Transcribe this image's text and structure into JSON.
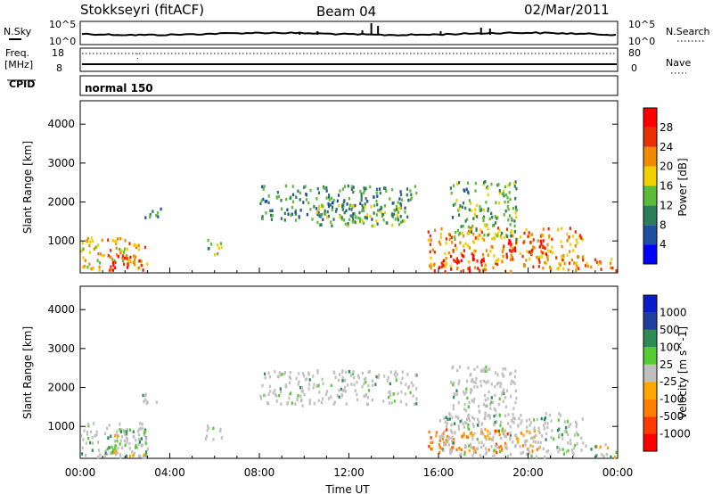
{
  "header": {
    "station": "Stokkseyri (fitACF)",
    "beam": "Beam 04",
    "date": "02/Mar/2011"
  },
  "side_labels": {
    "nsky": "N.Sky",
    "nsearch": "N.Search",
    "freq": "Freq.",
    "freq_unit": "[MHz]",
    "nave": "Nave",
    "cpid": "CPID",
    "cpid_value": "normal 150"
  },
  "noise_panel": {
    "left_ticks": [
      "10^5",
      "10^0"
    ],
    "right_ticks": [
      "10^5",
      "10^0"
    ]
  },
  "freq_panel": {
    "left_ticks": [
      "18",
      "8"
    ],
    "right_ticks": [
      "80",
      "0"
    ]
  },
  "colors": {
    "power": [
      "#0000ff",
      "#1f4fa0",
      "#2e7d5a",
      "#5dbb3a",
      "#f2cf00",
      "#f08a00",
      "#e83000",
      "#ff0000"
    ],
    "velocity": [
      "#ff0000",
      "#ff3a00",
      "#ff7f00",
      "#ffa500",
      "#c0c0c0",
      "#55cc33",
      "#2e8b57",
      "#1f3fa0",
      "#0a1cc8"
    ]
  },
  "chart_data": [
    {
      "type": "heatmap",
      "title": "",
      "xlabel": "",
      "ylabel": "Slant Range [km]",
      "xlim": [
        "00:00",
        "00:00"
      ],
      "ylim": [
        180,
        4600
      ],
      "x_ticks": [
        "00:00",
        "04:00",
        "08:00",
        "12:00",
        "16:00",
        "20:00",
        "00:00"
      ],
      "y_ticks": [
        1000,
        2000,
        3000,
        4000
      ],
      "colorbar_label": "Power [dB]",
      "colorbar_ticks": [
        4,
        8,
        12,
        16,
        20,
        24,
        28
      ],
      "colorbar_range": [
        0,
        30
      ],
      "scatter_regions": [
        {
          "t": [
            0.0,
            3.0
          ],
          "r": [
            180,
            1050
          ],
          "level": 18
        },
        {
          "t": [
            1.3,
            2.9
          ],
          "r": [
            200,
            600
          ],
          "level": 26
        },
        {
          "t": [
            2.6,
            3.6
          ],
          "r": [
            1550,
            1800
          ],
          "level": 10
        },
        {
          "t": [
            5.5,
            6.3
          ],
          "r": [
            600,
            1000
          ],
          "level": 14
        },
        {
          "t": [
            8.0,
            15.0
          ],
          "r": [
            1500,
            2400
          ],
          "level": 10
        },
        {
          "t": [
            10.5,
            14.5
          ],
          "r": [
            1350,
            1900
          ],
          "level": 14
        },
        {
          "t": [
            15.5,
            22.5
          ],
          "r": [
            180,
            1300
          ],
          "level": 20
        },
        {
          "t": [
            16.0,
            18.0
          ],
          "r": [
            200,
            600
          ],
          "level": 28
        },
        {
          "t": [
            19.0,
            20.8
          ],
          "r": [
            600,
            1000
          ],
          "level": 28
        },
        {
          "t": [
            16.5,
            19.5
          ],
          "r": [
            1000,
            2500
          ],
          "level": 12
        },
        {
          "t": [
            22.5,
            24.0
          ],
          "r": [
            180,
            500
          ],
          "level": 22
        }
      ]
    },
    {
      "type": "heatmap",
      "title": "",
      "xlabel": "Time UT",
      "ylabel": "Slant Range [km]",
      "xlim": [
        "00:00",
        "00:00"
      ],
      "ylim": [
        180,
        4600
      ],
      "x_ticks": [
        "00:00",
        "04:00",
        "08:00",
        "12:00",
        "16:00",
        "20:00",
        "00:00"
      ],
      "y_ticks": [
        1000,
        2000,
        3000,
        4000
      ],
      "colorbar_label": "Velocity [m s^-1]",
      "colorbar_ticks": [
        -1000,
        -500,
        -100,
        -25,
        25,
        100,
        500,
        1000
      ],
      "scatter_regions": [
        {
          "t": [
            0.0,
            3.0
          ],
          "r": [
            180,
            1050
          ],
          "class": "ground"
        },
        {
          "t": [
            1.0,
            3.0
          ],
          "r": [
            200,
            900
          ],
          "class": "mixed"
        },
        {
          "t": [
            2.6,
            3.6
          ],
          "r": [
            1550,
            1800
          ],
          "class": "ground"
        },
        {
          "t": [
            5.5,
            6.3
          ],
          "r": [
            600,
            1000
          ],
          "class": "ground"
        },
        {
          "t": [
            8.0,
            15.0
          ],
          "r": [
            1500,
            2400
          ],
          "class": "ground"
        },
        {
          "t": [
            15.5,
            20.5
          ],
          "r": [
            300,
            900
          ],
          "class": "negative"
        },
        {
          "t": [
            16.0,
            22.5
          ],
          "r": [
            180,
            1300
          ],
          "class": "ground"
        },
        {
          "t": [
            16.5,
            19.5
          ],
          "r": [
            1000,
            2500
          ],
          "class": "ground"
        },
        {
          "t": [
            22.5,
            24.0
          ],
          "r": [
            180,
            500
          ],
          "class": "mixed"
        }
      ]
    }
  ]
}
